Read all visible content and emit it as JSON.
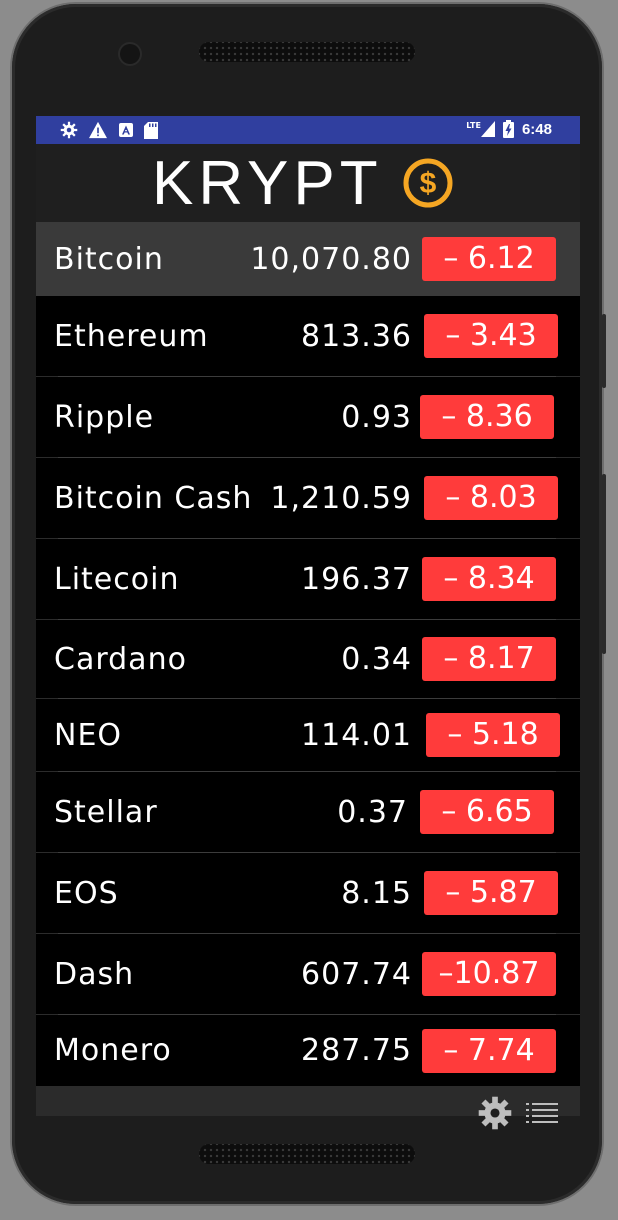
{
  "status_bar": {
    "icons_left": [
      "settings-icon",
      "warning-icon",
      "a-box-icon",
      "sd-card-icon"
    ],
    "network": "LTE",
    "time": "6:48"
  },
  "app": {
    "title": "KRYPT",
    "logo_icon": "dollar-coin-icon",
    "colors": {
      "accent": "#f5a623",
      "negative": "#ff3b3b",
      "statusbar": "#303f9f"
    }
  },
  "coins": [
    {
      "name": "Bitcoin",
      "price": "10,070.80",
      "change": "–  6.12"
    },
    {
      "name": "Ethereum",
      "price": "813.36",
      "change": "– 3.43"
    },
    {
      "name": "Ripple",
      "price": "0.93",
      "change": "– 8.36"
    },
    {
      "name": "Bitcoin Cash",
      "price": "1,210.59",
      "change": "– 8.03"
    },
    {
      "name": "Litecoin",
      "price": "196.37",
      "change": "– 8.34"
    },
    {
      "name": "Cardano",
      "price": "0.34",
      "change": "–  8.17"
    },
    {
      "name": "NEO",
      "price": "114.01",
      "change": "–  5.18"
    },
    {
      "name": "Stellar",
      "price": "0.37",
      "change": "– 6.65"
    },
    {
      "name": "EOS",
      "price": "8.15",
      "change": "– 5.87"
    },
    {
      "name": "Dash",
      "price": "607.74",
      "change": "–10.87"
    },
    {
      "name": "Monero",
      "price": "287.75",
      "change": "–  7.74"
    }
  ],
  "bottom_bar": {
    "icons": [
      "gear-icon",
      "list-icon"
    ]
  }
}
